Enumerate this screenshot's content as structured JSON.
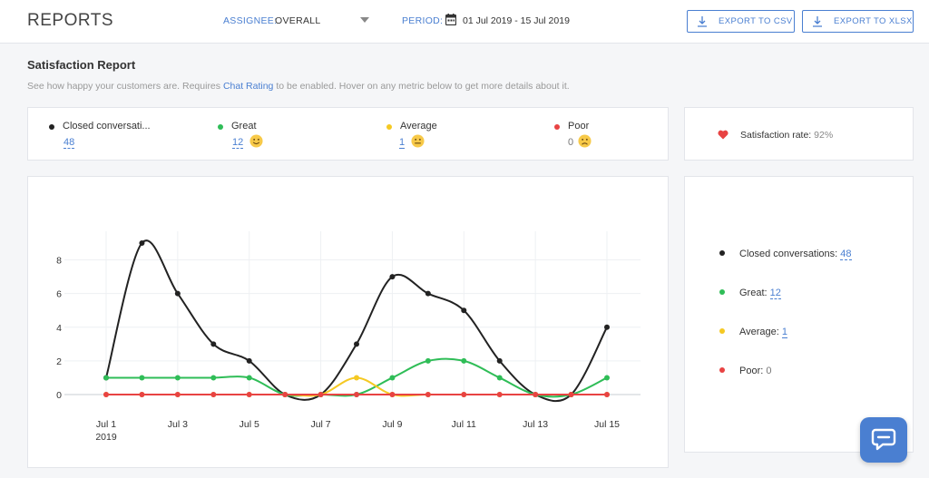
{
  "header": {
    "title": "REPORTS",
    "assignee_label": "ASSIGNEE:",
    "assignee_value": "OVERALL",
    "period_label": "PERIOD:",
    "period_value": "01 Jul 2019 - 15 Jul 2019",
    "export_csv": "EXPORT TO CSV",
    "export_xlsx": "EXPORT TO XLSX"
  },
  "section": {
    "title": "Satisfaction Report",
    "desc_before": "See how happy your customers are. Requires ",
    "desc_link": "Chat Rating",
    "desc_after": " to be enabled. Hover on any metric below to get more details about it."
  },
  "metrics": [
    {
      "label": "Closed conversati...",
      "value": "48",
      "color": "#222222"
    },
    {
      "label": "Great",
      "value": "12",
      "color": "#2fbd57",
      "emoji": "smile-emoji-icon"
    },
    {
      "label": "Average",
      "value": "1",
      "color": "#f5c923",
      "emoji": "neutral-face-emoji-icon"
    },
    {
      "label": "Poor",
      "value": "0",
      "color": "#e84343",
      "emoji": "sad-face-emoji-icon"
    }
  ],
  "satisfaction": {
    "label": "Satisfaction rate:",
    "value": "92%",
    "icon": "heart-icon",
    "color": "#e84343"
  },
  "legend": [
    {
      "label": "Closed conversations:",
      "value": "48",
      "color": "#222222"
    },
    {
      "label": "Great:",
      "value": "12",
      "color": "#2fbd57"
    },
    {
      "label": "Average:",
      "value": "1",
      "color": "#f5c923"
    },
    {
      "label": "Poor:",
      "value": "0",
      "color": "#e84343"
    }
  ],
  "chart_data": {
    "type": "line",
    "x": [
      "Jul 1",
      "Jul 2",
      "Jul 3",
      "Jul 4",
      "Jul 5",
      "Jul 6",
      "Jul 7",
      "Jul 8",
      "Jul 9",
      "Jul 10",
      "Jul 11",
      "Jul 12",
      "Jul 13",
      "Jul 14",
      "Jul 15"
    ],
    "tick_labels": [
      "Jul 1",
      "Jul 3",
      "Jul 5",
      "Jul 7",
      "Jul 9",
      "Jul 11",
      "Jul 13",
      "Jul 15"
    ],
    "year_label": "2019",
    "yticks": [
      0,
      2,
      4,
      6,
      8
    ],
    "ylim": [
      0,
      9
    ],
    "grid": true,
    "series": [
      {
        "name": "Closed conversations",
        "color": "#222222",
        "values": [
          1,
          9,
          6,
          3,
          2,
          0,
          0,
          3,
          7,
          6,
          5,
          2,
          0,
          0,
          4
        ]
      },
      {
        "name": "Great",
        "color": "#2fbd57",
        "values": [
          1,
          1,
          1,
          1,
          1,
          0,
          0,
          0,
          1,
          2,
          2,
          1,
          0,
          0,
          1
        ]
      },
      {
        "name": "Average",
        "color": "#f5c923",
        "values": [
          0,
          0,
          0,
          0,
          0,
          0,
          0,
          1,
          0,
          0,
          0,
          0,
          0,
          0,
          0
        ]
      },
      {
        "name": "Poor",
        "color": "#e84343",
        "values": [
          0,
          0,
          0,
          0,
          0,
          0,
          0,
          0,
          0,
          0,
          0,
          0,
          0,
          0,
          0
        ]
      }
    ]
  }
}
